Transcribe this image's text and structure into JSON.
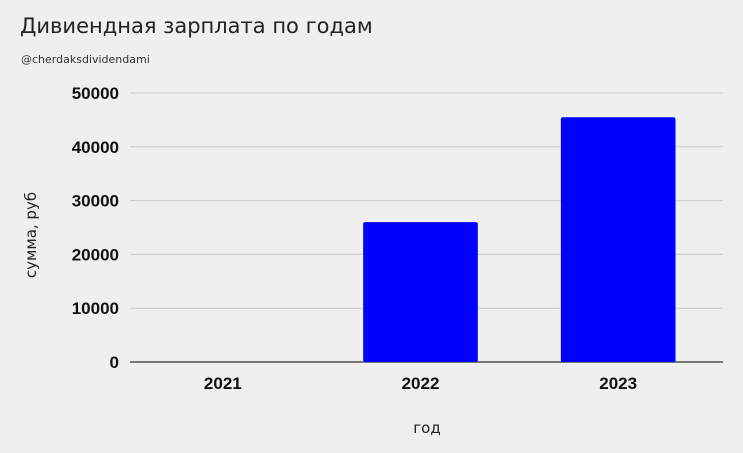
{
  "chart_data": {
    "type": "bar",
    "title": "Дивиендная зарплата по годам",
    "subtitle": "@cherdaksdividendami",
    "xlabel": "год",
    "ylabel": "сумма, руб",
    "categories": [
      "2021",
      "2022",
      "2023"
    ],
    "values": [
      0,
      26000,
      45500
    ],
    "ylim": [
      0,
      50000
    ],
    "yticks": [
      "0",
      "10000",
      "20000",
      "30000",
      "40000",
      "50000"
    ],
    "grid": true,
    "bar_color": "#0000ff"
  }
}
